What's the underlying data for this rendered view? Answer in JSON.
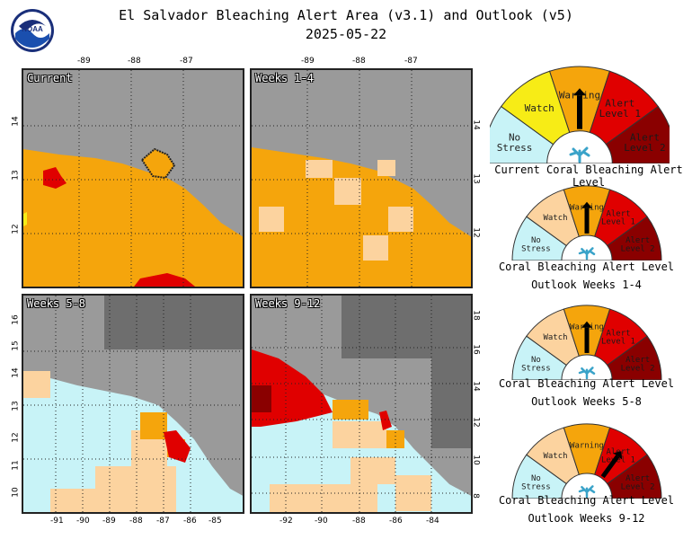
{
  "title_line1": "El Salvador Bleaching Alert Area (v3.1) and Outlook (v5)",
  "title_line2": "2025-05-22",
  "logo_text": "NOAA",
  "panels": {
    "current": {
      "label": "Current"
    },
    "w1_4": {
      "label": "Weeks 1-4"
    },
    "w5_8": {
      "label": "Weeks 5-8"
    },
    "w9_12": {
      "label": "Weeks 9-12"
    }
  },
  "ticks": {
    "top_lon": [
      "-89",
      "-88",
      "-87"
    ],
    "left_lat_top": [
      "14",
      "13",
      "12"
    ],
    "right_lat_top": [
      "14",
      "13",
      "12"
    ],
    "bottom_lon_left": [
      "-91",
      "-90",
      "-89",
      "-88",
      "-87",
      "-86",
      "-85"
    ],
    "bottom_lon_right": [
      "-92",
      "-90",
      "-88",
      "-86",
      "-84"
    ],
    "left_lat_bottom": [
      "16",
      "15",
      "14",
      "13",
      "12",
      "11",
      "10"
    ],
    "right_lat_bottom": [
      "18",
      "16",
      "14",
      "12",
      "10",
      "8"
    ]
  },
  "gauges": [
    {
      "caption1": "Current Coral Bleaching Alert Level",
      "caption2": "",
      "level": "Warning"
    },
    {
      "caption1": "Coral Bleaching Alert Level",
      "caption2": "Outlook Weeks 1-4",
      "level": "Warning"
    },
    {
      "caption1": "Coral Bleaching Alert Level",
      "caption2": "Outlook Weeks 5-8",
      "level": "Warning"
    },
    {
      "caption1": "Coral Bleaching Alert Level",
      "caption2": "Outlook Weeks 9-12",
      "level": "Alert Level 1"
    }
  ],
  "gauge_labels": {
    "no_stress": "No Stress",
    "watch": "Watch",
    "warning": "Warning",
    "alert1": "Alert Level 1",
    "alert2": "Alert Level 2"
  },
  "colors": {
    "no_stress": "#c8f3f7",
    "watch_current": "#f7ec16",
    "watch_outlook": "#fcd39f",
    "warning": "#f5a50c",
    "alert1": "#e00000",
    "alert2": "#8a0000",
    "land": "#9a9a9a",
    "land_dark": "#6e6e6e"
  }
}
